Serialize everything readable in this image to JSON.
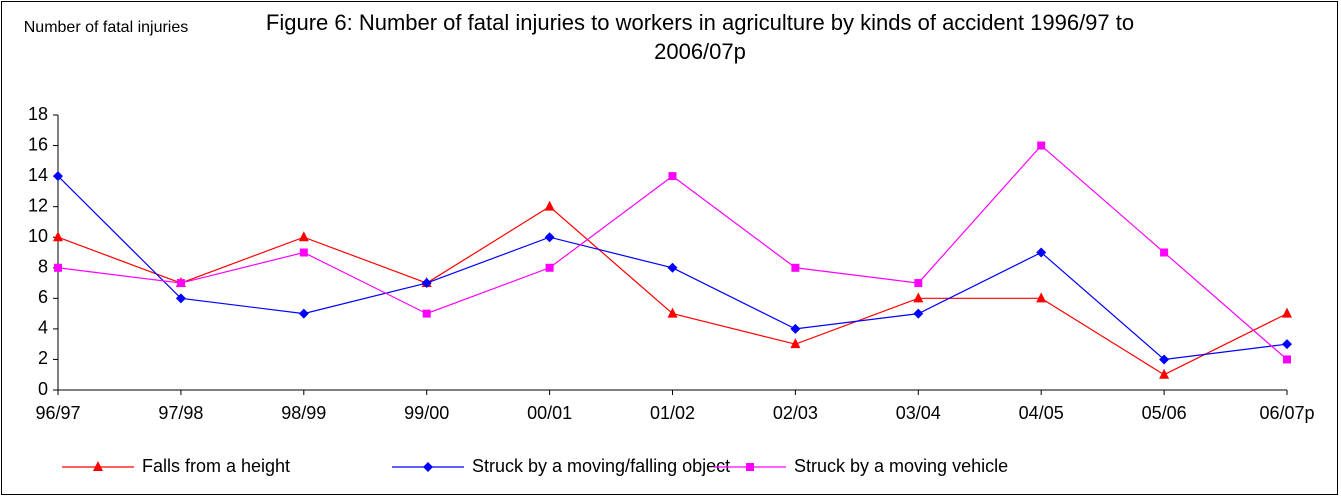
{
  "chart_data": {
    "type": "line",
    "title": "Figure 6:  Number of fatal injuries to workers in agriculture by kinds of accident 1996/97 to 2006/07p",
    "y_label": "Number of fatal injuries",
    "categories": [
      "96/97",
      "97/98",
      "98/99",
      "99/00",
      "00/01",
      "01/02",
      "02/03",
      "03/04",
      "04/05",
      "05/06",
      "06/07p"
    ],
    "series": [
      {
        "name": "Falls from a height",
        "color": "#ff0000",
        "marker": "triangle",
        "values": [
          10,
          7,
          10,
          7,
          12,
          5,
          3,
          6,
          6,
          1,
          5
        ]
      },
      {
        "name": "Struck by a moving/falling object",
        "color": "#0000ff",
        "marker": "diamond",
        "values": [
          14,
          6,
          5,
          7,
          10,
          8,
          4,
          5,
          9,
          2,
          3
        ]
      },
      {
        "name": "Struck by a moving vehicle",
        "color": "#ff00ff",
        "marker": "square",
        "values": [
          8,
          7,
          9,
          5,
          8,
          14,
          8,
          7,
          16,
          9,
          2
        ]
      }
    ],
    "ylim": [
      0,
      18
    ],
    "yticks": [
      0,
      2,
      4,
      6,
      8,
      10,
      12,
      14,
      16,
      18
    ],
    "grid": false,
    "legend": "bottom"
  }
}
